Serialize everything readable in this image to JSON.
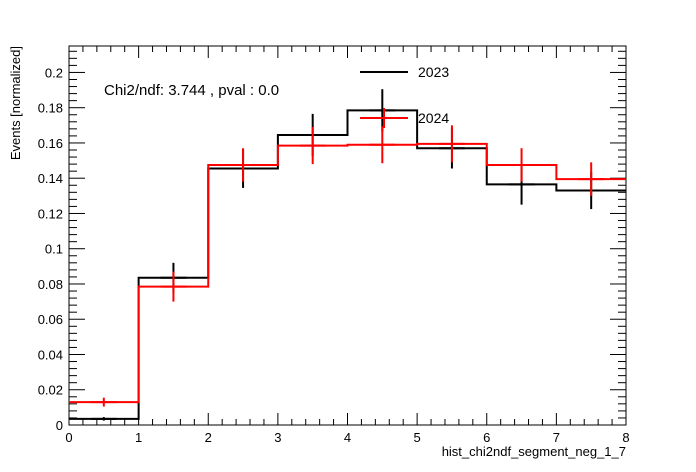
{
  "chart_data": {
    "type": "histogram",
    "xlabel": "hist_chi2ndf_segment_neg_1_7",
    "ylabel": "Events [normalized]",
    "annotation": "Chi2/ndf: 3.744 , pval : 0.0",
    "xlim": [
      0,
      8
    ],
    "ylim": [
      0,
      0.215
    ],
    "x_ticks": [
      "0",
      "1",
      "2",
      "3",
      "4",
      "5",
      "6",
      "7",
      "8"
    ],
    "y_ticks": [
      "0",
      "0.02",
      "0.04",
      "0.06",
      "0.08",
      "0.1",
      "0.12",
      "0.14",
      "0.16",
      "0.18",
      "0.2"
    ],
    "bin_edges": [
      0,
      1,
      2,
      3,
      4,
      5,
      6,
      7,
      8
    ],
    "legend_position": "top-right",
    "series": [
      {
        "name": "2023",
        "color": "#000000",
        "values": [
          0.0035,
          0.0835,
          0.1455,
          0.1645,
          0.1785,
          0.157,
          0.1365,
          0.133
        ],
        "errors": [
          0.001,
          0.0085,
          0.011,
          0.012,
          0.012,
          0.0115,
          0.0115,
          0.0105
        ]
      },
      {
        "name": "2024",
        "color": "#ff0000",
        "values": [
          0.013,
          0.0785,
          0.1475,
          0.1585,
          0.159,
          0.1595,
          0.1475,
          0.1395
        ],
        "errors": [
          0.0025,
          0.0085,
          0.0095,
          0.0105,
          0.0105,
          0.0105,
          0.0095,
          0.0095
        ]
      }
    ]
  }
}
